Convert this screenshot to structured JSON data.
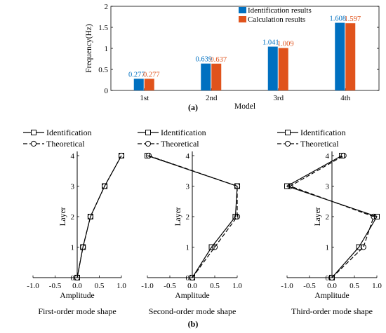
{
  "colors": {
    "identification_bar": "#0070C0",
    "calculation_bar": "#E0531C",
    "axis": "#000000"
  },
  "panel_labels": {
    "a": "(a)",
    "b": "(b)"
  },
  "chart_data": [
    {
      "type": "bar",
      "panel": "(a)",
      "categories": [
        "1st",
        "2nd",
        "3rd",
        "4th"
      ],
      "series": [
        {
          "name": "Identification results",
          "values": [
            0.277,
            0.639,
            1.041,
            1.608
          ],
          "labels": [
            "0.277",
            "0.639",
            "1.041",
            "1.608"
          ],
          "color": "#0070C0"
        },
        {
          "name": "Calculation results",
          "values": [
            0.277,
            0.637,
            1.009,
            1.597
          ],
          "labels": [
            "0.277",
            "0.637",
            "1.009",
            "1.597"
          ],
          "color": "#E0531C"
        }
      ],
      "xlabel": "Model",
      "ylabel": "Frequency(Hz)",
      "ylim": [
        0,
        2
      ],
      "yticks": [
        "0",
        "0.5",
        "1",
        "1.5",
        "2"
      ],
      "legend_position": "top-right"
    },
    {
      "type": "line",
      "title": "First-order mode shape",
      "xlabel": "Amplitude",
      "ylabel": "Layer",
      "xlim": [
        -1,
        1
      ],
      "ylim": [
        0,
        4
      ],
      "xticks": [
        "-1.0",
        "-0.5",
        "0.0",
        "0.5",
        "1.0"
      ],
      "yticks": [
        "0",
        "1",
        "2",
        "3",
        "4"
      ],
      "legend_position": "top-left",
      "series": [
        {
          "name": "Identification",
          "style": "solid",
          "marker": "square",
          "x": [
            0.0,
            0.13,
            0.3,
            0.62,
            1.0
          ],
          "y": [
            0,
            1,
            2,
            3,
            4
          ]
        },
        {
          "name": "Theoretical",
          "style": "dashed",
          "marker": "circle",
          "x": [
            0.0,
            0.13,
            0.3,
            0.62,
            1.0
          ],
          "y": [
            0,
            1,
            2,
            3,
            4
          ]
        }
      ]
    },
    {
      "type": "line",
      "title": "Second-order mode shape",
      "xlabel": "Amplitude",
      "ylabel": "Layer",
      "xlim": [
        -1,
        1
      ],
      "ylim": [
        0,
        4
      ],
      "xticks": [
        "-1.0",
        "-0.5",
        "0.0",
        "0.5",
        "1.0"
      ],
      "yticks": [
        "0",
        "1",
        "2",
        "3",
        "4"
      ],
      "legend_position": "top-left",
      "series": [
        {
          "name": "Identification",
          "style": "solid",
          "marker": "square",
          "x": [
            0.0,
            0.43,
            0.96,
            1.0,
            -1.0
          ],
          "y": [
            0,
            1,
            2,
            3,
            4
          ]
        },
        {
          "name": "Theoretical",
          "style": "dashed",
          "marker": "circle",
          "x": [
            0.0,
            0.5,
            1.0,
            1.0,
            -0.97
          ],
          "y": [
            0,
            1,
            2,
            3,
            4
          ]
        }
      ]
    },
    {
      "type": "line",
      "title": "Third-order mode shape",
      "xlabel": "Amplitude",
      "ylabel": "Layer",
      "xlim": [
        -1,
        1
      ],
      "ylim": [
        0,
        4
      ],
      "xticks": [
        "-1.0",
        "-0.5",
        "0.0",
        "0.5",
        "1.0"
      ],
      "yticks": [
        "0",
        "1",
        "2",
        "3",
        "4"
      ],
      "legend_position": "top-left",
      "series": [
        {
          "name": "Identification",
          "style": "solid",
          "marker": "square",
          "x": [
            0.0,
            0.6,
            1.0,
            -1.0,
            0.22
          ],
          "y": [
            0,
            1,
            2,
            3,
            4
          ]
        },
        {
          "name": "Theoretical",
          "style": "dashed",
          "marker": "circle",
          "x": [
            0.0,
            0.7,
            0.93,
            -0.93,
            0.26
          ],
          "y": [
            0,
            1,
            2,
            3,
            4
          ]
        }
      ]
    }
  ]
}
